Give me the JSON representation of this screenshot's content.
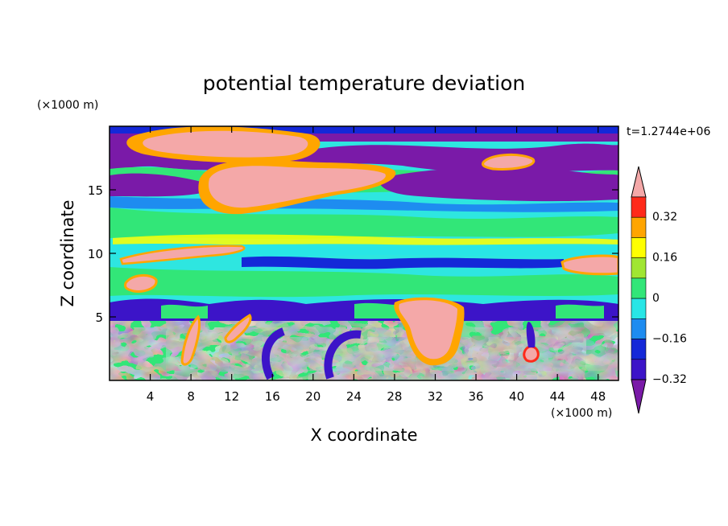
{
  "chart_data": {
    "type": "heatmap",
    "title": "potential temperature deviation",
    "xlabel": "X coordinate",
    "ylabel": "Z coordinate",
    "x_unit": "(×1000 m)",
    "y_unit": "(×1000 m)",
    "time_label": "t=1.2744e+06",
    "xlim": [
      0,
      50
    ],
    "ylim": [
      0,
      20
    ],
    "x_ticks": [
      4,
      8,
      12,
      16,
      20,
      24,
      28,
      32,
      36,
      40,
      44,
      48
    ],
    "y_ticks": [
      5,
      10,
      15
    ],
    "colorbar": {
      "levels": [
        -0.4,
        -0.32,
        -0.24,
        -0.16,
        -0.08,
        0,
        0.08,
        0.16,
        0.24,
        0.32,
        0.4
      ],
      "labeled_levels": [
        "0.32",
        "0.16",
        "0",
        "−0.16",
        "−0.32"
      ],
      "colors": [
        "#7a1aa8",
        "#3c14c8",
        "#1428d8",
        "#1e8cf0",
        "#28e6e6",
        "#32e678",
        "#a0e632",
        "#ffff00",
        "#ffa500",
        "#ff2a1a",
        "#f4a8a8"
      ],
      "extend": "both"
    }
  }
}
